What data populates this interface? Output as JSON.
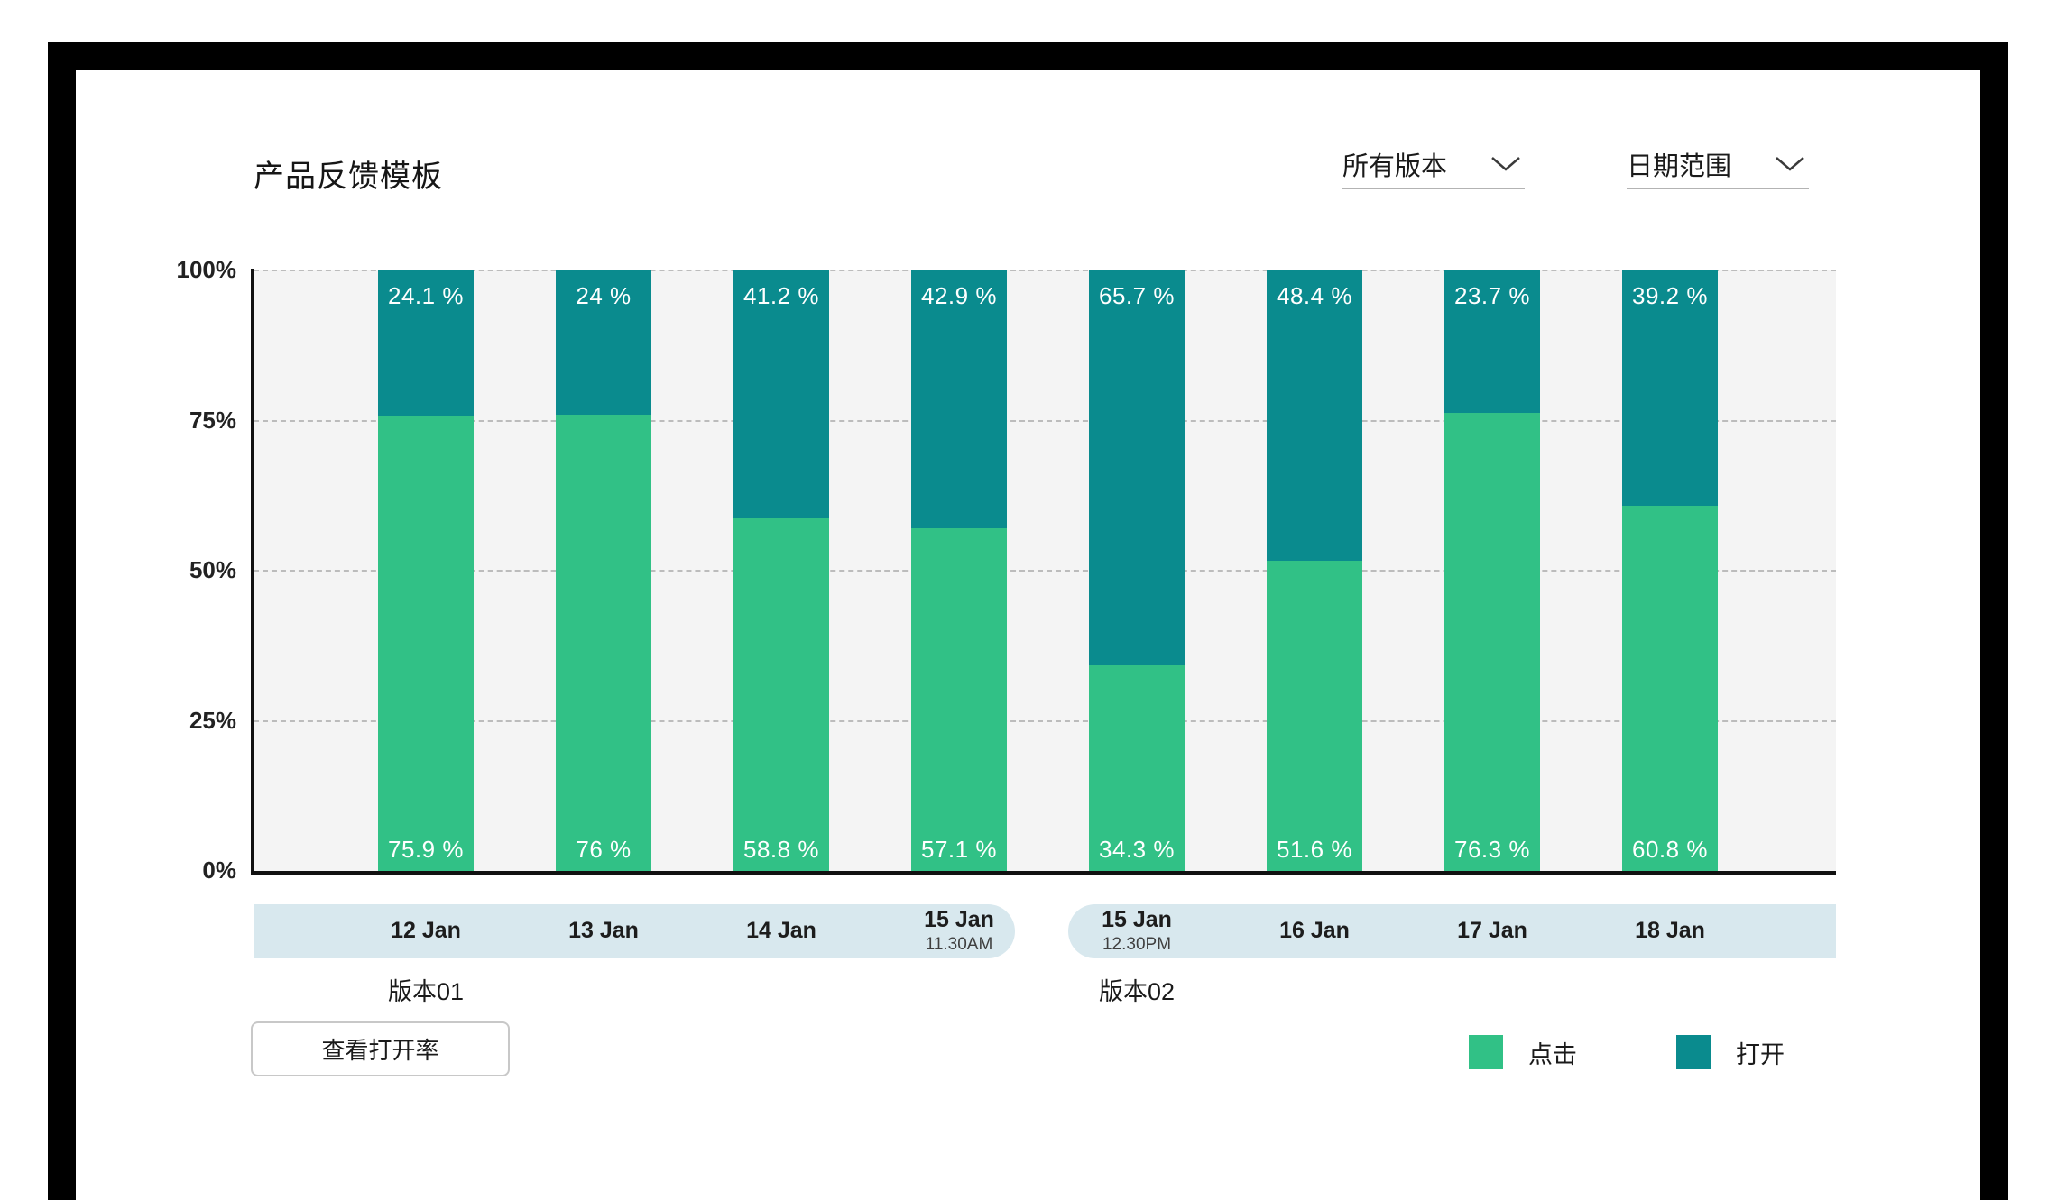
{
  "page": {
    "title": "产品反馈模板"
  },
  "filters": {
    "version_dropdown": {
      "selected": "所有版本"
    },
    "date_dropdown": {
      "selected": "日期范围"
    }
  },
  "chart_data": {
    "type": "bar",
    "stacked": true,
    "title": "产品反馈模板",
    "ylabel": "",
    "xlabel": "",
    "ylim": [
      0,
      100
    ],
    "y_ticks": [
      "100%",
      "75%",
      "50%",
      "25%",
      "0%"
    ],
    "grid": "horizontal-dashed",
    "legend_position": "bottom-right",
    "plot_background": "#f4f4f4",
    "categories": [
      {
        "label": "12 Jan",
        "sublabel": ""
      },
      {
        "label": "13 Jan",
        "sublabel": ""
      },
      {
        "label": "14 Jan",
        "sublabel": ""
      },
      {
        "label": "15 Jan",
        "sublabel": "11.30AM"
      },
      {
        "label": "15 Jan",
        "sublabel": "12.30PM"
      },
      {
        "label": "16 Jan",
        "sublabel": ""
      },
      {
        "label": "17 Jan",
        "sublabel": ""
      },
      {
        "label": "18 Jan",
        "sublabel": ""
      }
    ],
    "series": [
      {
        "name": "点击",
        "color": "#31c186",
        "values": [
          75.9,
          76,
          58.8,
          57.1,
          34.3,
          51.6,
          76.3,
          60.8
        ],
        "labels": [
          "75.9 %",
          "76 %",
          "58.8 %",
          "57.1 %",
          "34.3 %",
          "51.6 %",
          "76.3 %",
          "60.8 %"
        ]
      },
      {
        "name": "打开",
        "color": "#0a8b8e",
        "values": [
          24.1,
          24,
          41.2,
          42.9,
          65.7,
          48.4,
          23.7,
          39.2
        ],
        "labels": [
          "24.1 %",
          "24 %",
          "41.2 %",
          "42.9 %",
          "65.7 %",
          "48.4 %",
          "23.7 %",
          "39.2 %"
        ]
      }
    ],
    "groups": [
      {
        "label": "版本01",
        "start": 0,
        "end": 3
      },
      {
        "label": "版本02",
        "start": 4,
        "end": 7
      }
    ]
  },
  "footer": {
    "open_rate_button": "查看打开率"
  },
  "legend": {
    "click_label": "点击",
    "open_label": "打开"
  },
  "colors": {
    "click_green": "#31c186",
    "open_teal": "#0a8b8e",
    "band_blue": "#d8e8ee",
    "frame_black": "#000000"
  }
}
